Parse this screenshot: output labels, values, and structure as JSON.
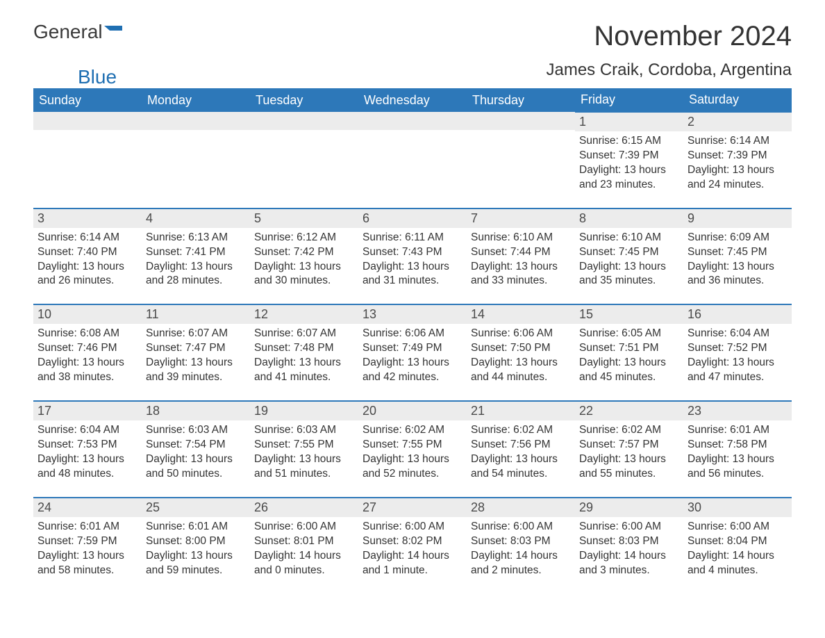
{
  "logo": {
    "text1": "General",
    "text2": "Blue"
  },
  "title": "November 2024",
  "location": "James Craik, Cordoba, Argentina",
  "colors": {
    "header_bg": "#2d78b9",
    "header_text": "#ffffff",
    "daynum_bg": "#ececec",
    "border": "#2d78b9",
    "text": "#333333",
    "logo_blue": "#1f6fb2",
    "background": "#ffffff"
  },
  "typography": {
    "month_title_fontsize": 40,
    "location_fontsize": 24,
    "dayhead_fontsize": 18,
    "daynum_fontsize": 18,
    "body_fontsize": 15.5
  },
  "day_headers": [
    "Sunday",
    "Monday",
    "Tuesday",
    "Wednesday",
    "Thursday",
    "Friday",
    "Saturday"
  ],
  "weeks": [
    [
      {
        "empty": true
      },
      {
        "empty": true
      },
      {
        "empty": true
      },
      {
        "empty": true
      },
      {
        "empty": true
      },
      {
        "n": "1",
        "sunrise": "Sunrise: 6:15 AM",
        "sunset": "Sunset: 7:39 PM",
        "daylight": "Daylight: 13 hours and 23 minutes."
      },
      {
        "n": "2",
        "sunrise": "Sunrise: 6:14 AM",
        "sunset": "Sunset: 7:39 PM",
        "daylight": "Daylight: 13 hours and 24 minutes."
      }
    ],
    [
      {
        "n": "3",
        "sunrise": "Sunrise: 6:14 AM",
        "sunset": "Sunset: 7:40 PM",
        "daylight": "Daylight: 13 hours and 26 minutes."
      },
      {
        "n": "4",
        "sunrise": "Sunrise: 6:13 AM",
        "sunset": "Sunset: 7:41 PM",
        "daylight": "Daylight: 13 hours and 28 minutes."
      },
      {
        "n": "5",
        "sunrise": "Sunrise: 6:12 AM",
        "sunset": "Sunset: 7:42 PM",
        "daylight": "Daylight: 13 hours and 30 minutes."
      },
      {
        "n": "6",
        "sunrise": "Sunrise: 6:11 AM",
        "sunset": "Sunset: 7:43 PM",
        "daylight": "Daylight: 13 hours and 31 minutes."
      },
      {
        "n": "7",
        "sunrise": "Sunrise: 6:10 AM",
        "sunset": "Sunset: 7:44 PM",
        "daylight": "Daylight: 13 hours and 33 minutes."
      },
      {
        "n": "8",
        "sunrise": "Sunrise: 6:10 AM",
        "sunset": "Sunset: 7:45 PM",
        "daylight": "Daylight: 13 hours and 35 minutes."
      },
      {
        "n": "9",
        "sunrise": "Sunrise: 6:09 AM",
        "sunset": "Sunset: 7:45 PM",
        "daylight": "Daylight: 13 hours and 36 minutes."
      }
    ],
    [
      {
        "n": "10",
        "sunrise": "Sunrise: 6:08 AM",
        "sunset": "Sunset: 7:46 PM",
        "daylight": "Daylight: 13 hours and 38 minutes."
      },
      {
        "n": "11",
        "sunrise": "Sunrise: 6:07 AM",
        "sunset": "Sunset: 7:47 PM",
        "daylight": "Daylight: 13 hours and 39 minutes."
      },
      {
        "n": "12",
        "sunrise": "Sunrise: 6:07 AM",
        "sunset": "Sunset: 7:48 PM",
        "daylight": "Daylight: 13 hours and 41 minutes."
      },
      {
        "n": "13",
        "sunrise": "Sunrise: 6:06 AM",
        "sunset": "Sunset: 7:49 PM",
        "daylight": "Daylight: 13 hours and 42 minutes."
      },
      {
        "n": "14",
        "sunrise": "Sunrise: 6:06 AM",
        "sunset": "Sunset: 7:50 PM",
        "daylight": "Daylight: 13 hours and 44 minutes."
      },
      {
        "n": "15",
        "sunrise": "Sunrise: 6:05 AM",
        "sunset": "Sunset: 7:51 PM",
        "daylight": "Daylight: 13 hours and 45 minutes."
      },
      {
        "n": "16",
        "sunrise": "Sunrise: 6:04 AM",
        "sunset": "Sunset: 7:52 PM",
        "daylight": "Daylight: 13 hours and 47 minutes."
      }
    ],
    [
      {
        "n": "17",
        "sunrise": "Sunrise: 6:04 AM",
        "sunset": "Sunset: 7:53 PM",
        "daylight": "Daylight: 13 hours and 48 minutes."
      },
      {
        "n": "18",
        "sunrise": "Sunrise: 6:03 AM",
        "sunset": "Sunset: 7:54 PM",
        "daylight": "Daylight: 13 hours and 50 minutes."
      },
      {
        "n": "19",
        "sunrise": "Sunrise: 6:03 AM",
        "sunset": "Sunset: 7:55 PM",
        "daylight": "Daylight: 13 hours and 51 minutes."
      },
      {
        "n": "20",
        "sunrise": "Sunrise: 6:02 AM",
        "sunset": "Sunset: 7:55 PM",
        "daylight": "Daylight: 13 hours and 52 minutes."
      },
      {
        "n": "21",
        "sunrise": "Sunrise: 6:02 AM",
        "sunset": "Sunset: 7:56 PM",
        "daylight": "Daylight: 13 hours and 54 minutes."
      },
      {
        "n": "22",
        "sunrise": "Sunrise: 6:02 AM",
        "sunset": "Sunset: 7:57 PM",
        "daylight": "Daylight: 13 hours and 55 minutes."
      },
      {
        "n": "23",
        "sunrise": "Sunrise: 6:01 AM",
        "sunset": "Sunset: 7:58 PM",
        "daylight": "Daylight: 13 hours and 56 minutes."
      }
    ],
    [
      {
        "n": "24",
        "sunrise": "Sunrise: 6:01 AM",
        "sunset": "Sunset: 7:59 PM",
        "daylight": "Daylight: 13 hours and 58 minutes."
      },
      {
        "n": "25",
        "sunrise": "Sunrise: 6:01 AM",
        "sunset": "Sunset: 8:00 PM",
        "daylight": "Daylight: 13 hours and 59 minutes."
      },
      {
        "n": "26",
        "sunrise": "Sunrise: 6:00 AM",
        "sunset": "Sunset: 8:01 PM",
        "daylight": "Daylight: 14 hours and 0 minutes."
      },
      {
        "n": "27",
        "sunrise": "Sunrise: 6:00 AM",
        "sunset": "Sunset: 8:02 PM",
        "daylight": "Daylight: 14 hours and 1 minute."
      },
      {
        "n": "28",
        "sunrise": "Sunrise: 6:00 AM",
        "sunset": "Sunset: 8:03 PM",
        "daylight": "Daylight: 14 hours and 2 minutes."
      },
      {
        "n": "29",
        "sunrise": "Sunrise: 6:00 AM",
        "sunset": "Sunset: 8:03 PM",
        "daylight": "Daylight: 14 hours and 3 minutes."
      },
      {
        "n": "30",
        "sunrise": "Sunrise: 6:00 AM",
        "sunset": "Sunset: 8:04 PM",
        "daylight": "Daylight: 14 hours and 4 minutes."
      }
    ]
  ]
}
